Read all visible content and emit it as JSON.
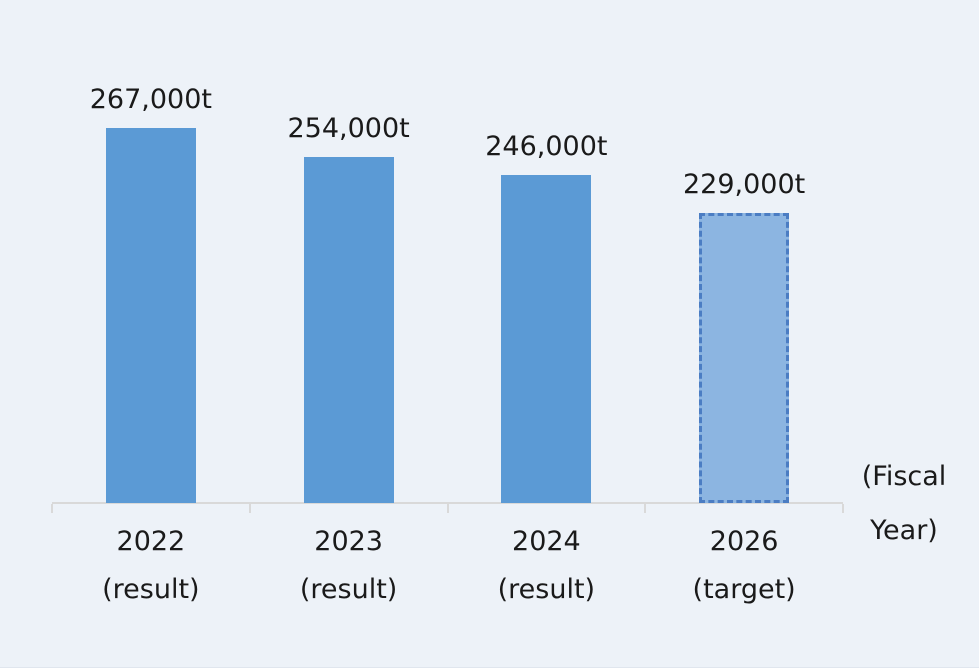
{
  "chart_data": {
    "type": "bar",
    "categories": [
      "2022",
      "2023",
      "2024",
      "2026"
    ],
    "category_sublabels": [
      "(result)",
      "(result)",
      "(result)",
      "(target)"
    ],
    "values": [
      267000,
      254000,
      246000,
      229000
    ],
    "value_labels": [
      "267,000t",
      "254,000t",
      "246,000t",
      "229,000t"
    ],
    "bar_styles": [
      "result",
      "result",
      "result",
      "target"
    ],
    "title": "",
    "xlabel": "(Fiscal Year)",
    "ylabel": "",
    "ylim": [
      100000,
      280000
    ],
    "grid": false,
    "legend": false,
    "axis_note_lines": [
      "(Fiscal",
      "Year)"
    ]
  },
  "colors": {
    "background": "#edf2f8",
    "bar_result": "#5b9ad5",
    "bar_target_fill": "#8cb5e1",
    "bar_target_border": "#4b7dc3",
    "axis_line": "#d9d9d9",
    "text": "#1a1a1a"
  }
}
